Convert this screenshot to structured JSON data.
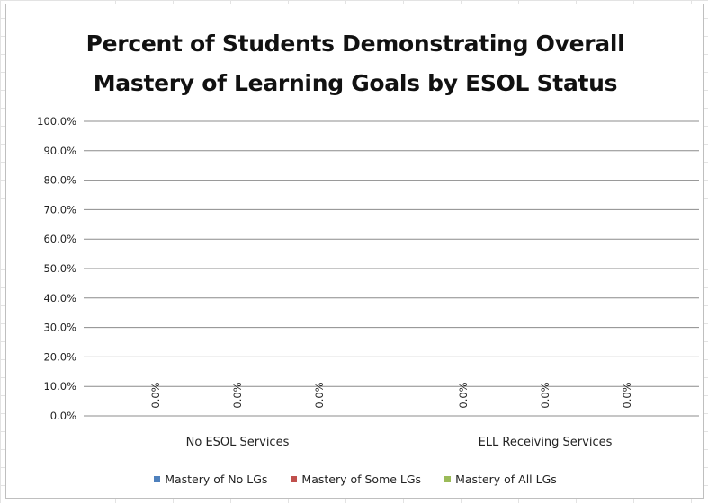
{
  "chart_data": {
    "type": "bar",
    "title_lines": [
      "Percent of Students Demonstrating Overall",
      "Mastery of Learning Goals by ESOL Status"
    ],
    "xlabel": "",
    "ylabel": "",
    "categories": [
      "No ESOL Services",
      "ELL Receiving Services"
    ],
    "series": [
      {
        "name": "Mastery of No LGs",
        "color": "#4f81bd",
        "values": [
          0,
          0
        ],
        "labels": [
          "0.0%",
          "0.0%"
        ]
      },
      {
        "name": "Mastery of Some LGs",
        "color": "#c0504d",
        "values": [
          0,
          0
        ],
        "labels": [
          "0.0%",
          "0.0%"
        ]
      },
      {
        "name": "Mastery of All LGs",
        "color": "#9bbb59",
        "values": [
          0,
          0
        ],
        "labels": [
          "0.0%",
          "0.0%"
        ]
      }
    ],
    "ylim": [
      0,
      100
    ],
    "yticks": [
      0,
      10,
      20,
      30,
      40,
      50,
      60,
      70,
      80,
      90,
      100
    ],
    "ytick_labels": [
      "0.0%",
      "10.0%",
      "20.0%",
      "30.0%",
      "40.0%",
      "50.0%",
      "60.0%",
      "70.0%",
      "80.0%",
      "90.0%",
      "100.0%"
    ],
    "grid": true,
    "legend_position": "bottom"
  }
}
